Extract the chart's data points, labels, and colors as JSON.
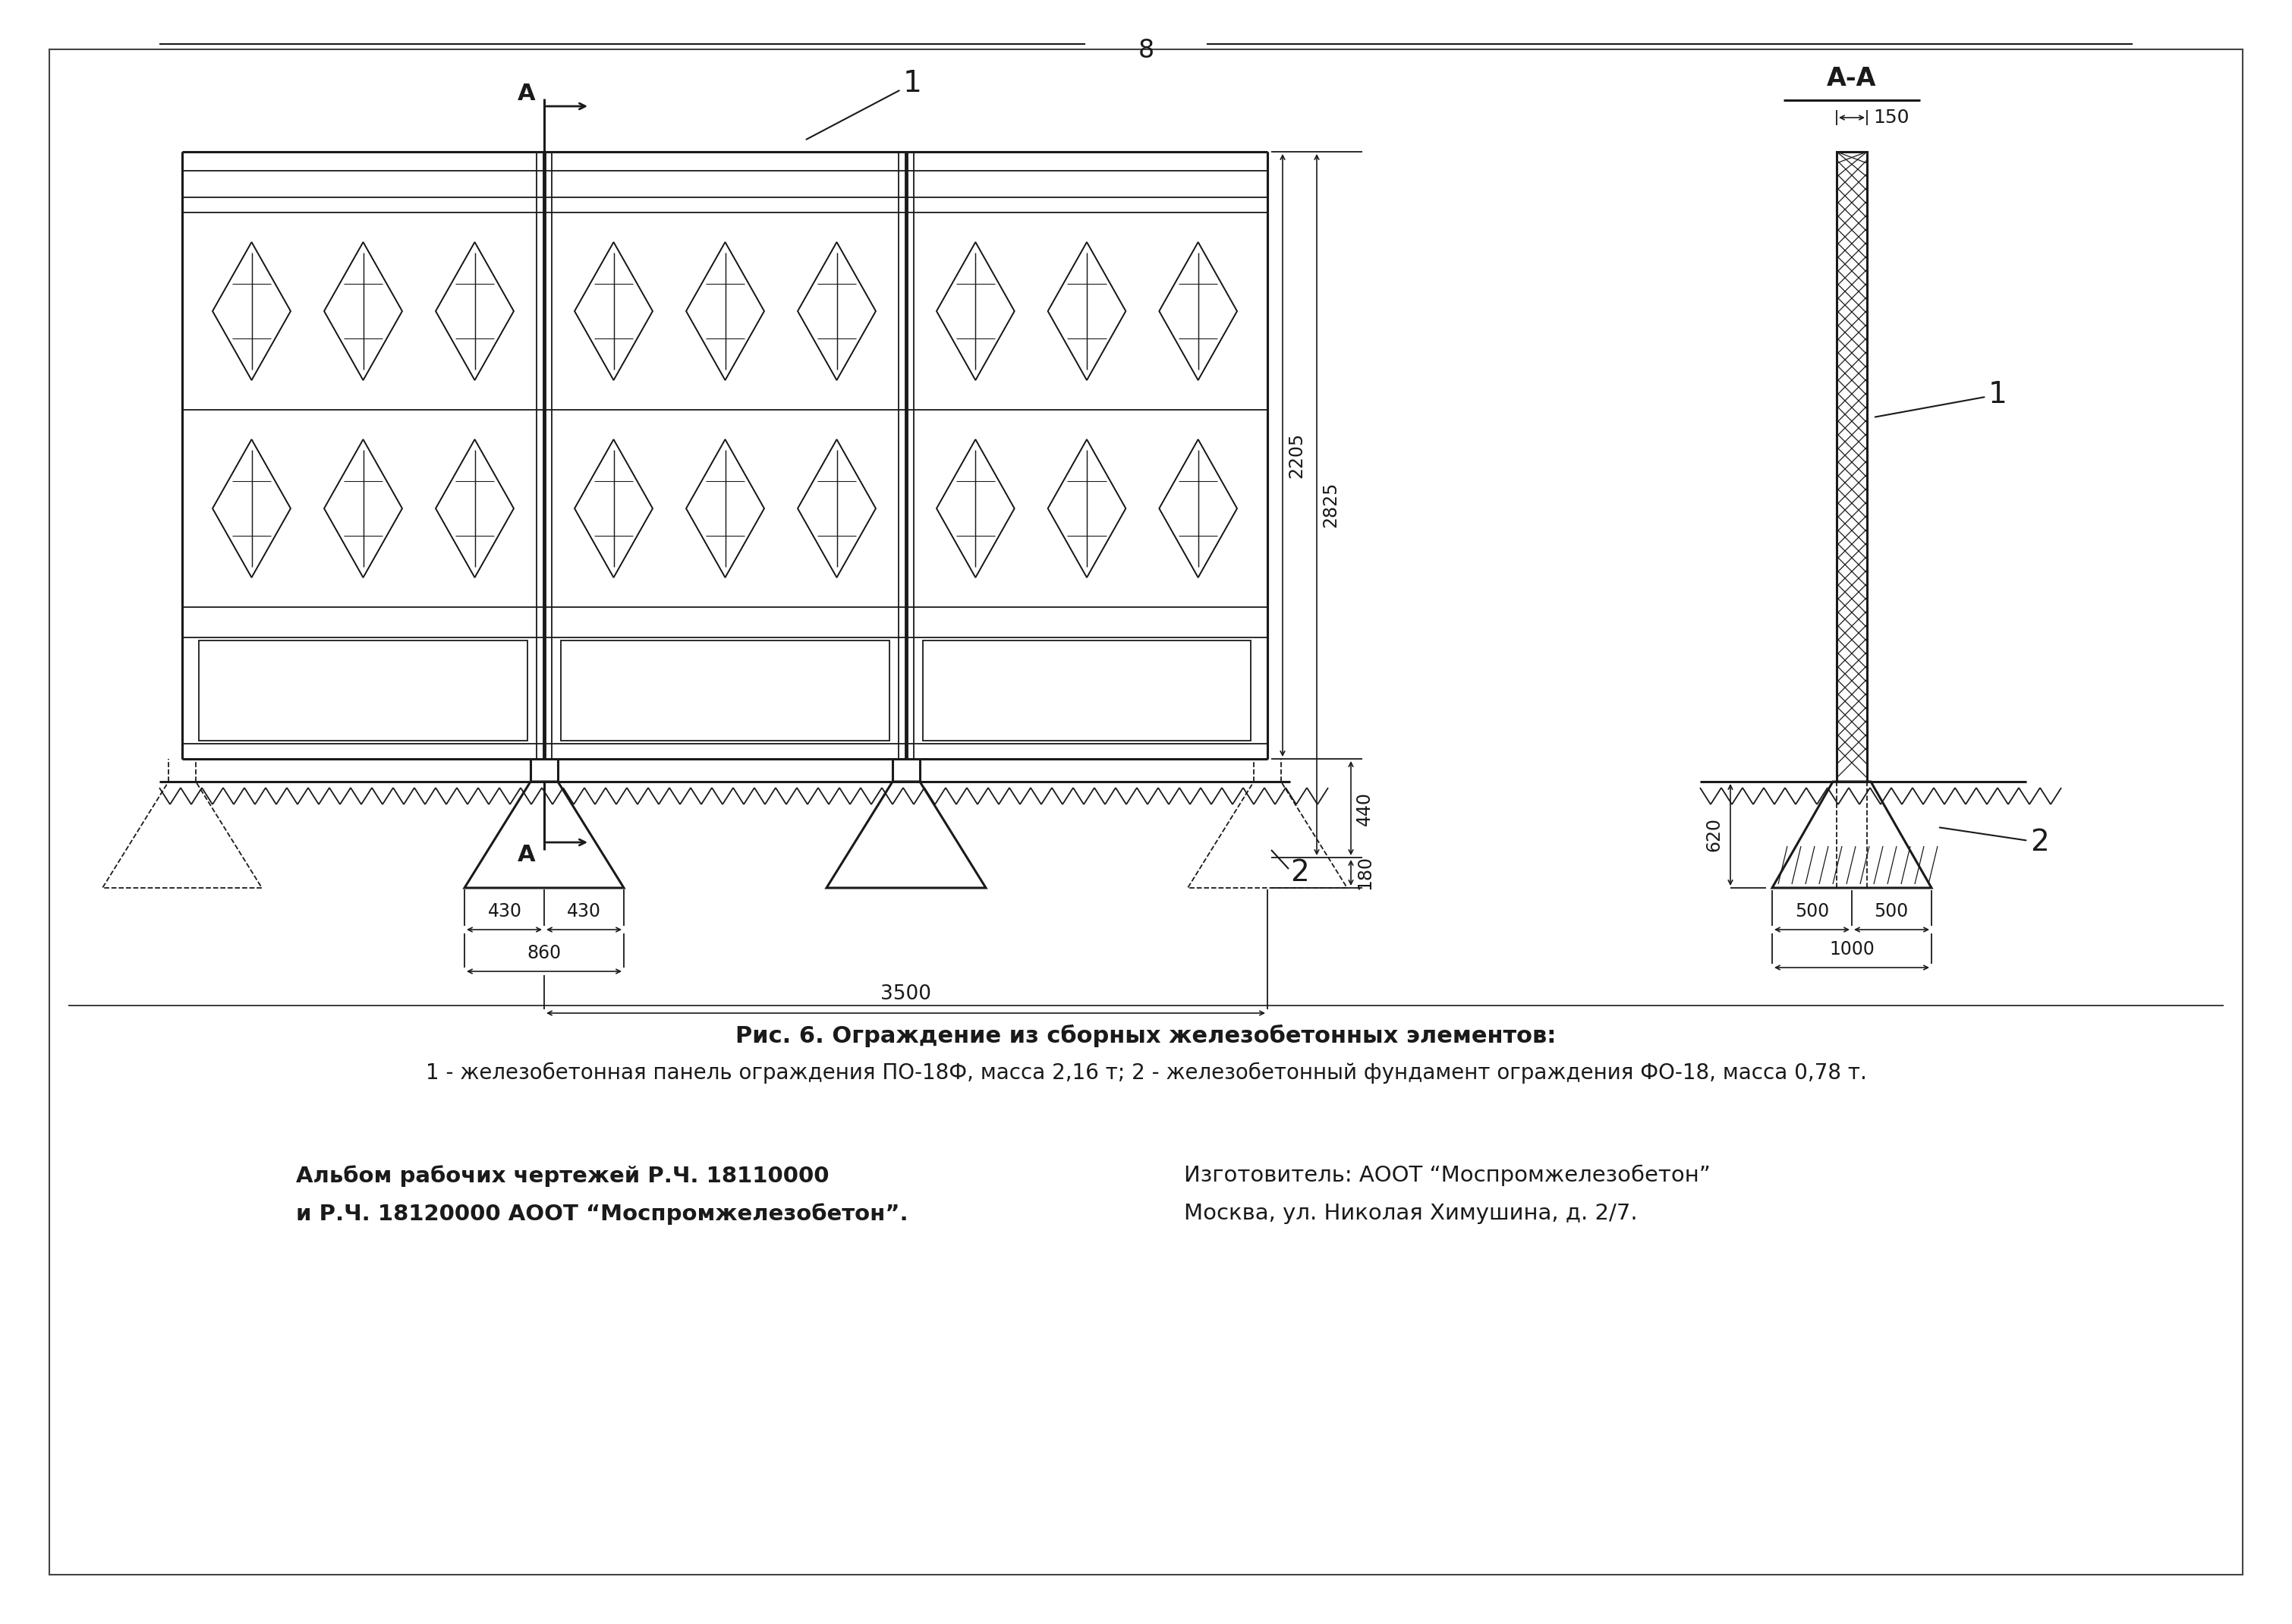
{
  "page_number": "8",
  "bg_color": "#ffffff",
  "line_color": "#1a1a1a",
  "title_caption": "Рис. 6. Ограждение из сборных железобетонных элементов:",
  "caption_line2": "1 - железобетонная панель ограждения ПО-18Ф, масса 2,16 т; 2 - железобетонный фундамент ограждения ФО-18, масса 0,78 т.",
  "footer_left_line1": "Альбом рабочих чертежей Р.Ч. 18110000",
  "footer_left_line2": "и Р.Ч. 18120000 АООТ “Моспромжелезобетон”.",
  "footer_right_line1": "Изготовитель: АООТ “Моспромжелезобетон”",
  "footer_right_line2": "Москва, ул. Николая Химушина, д. 2/7."
}
